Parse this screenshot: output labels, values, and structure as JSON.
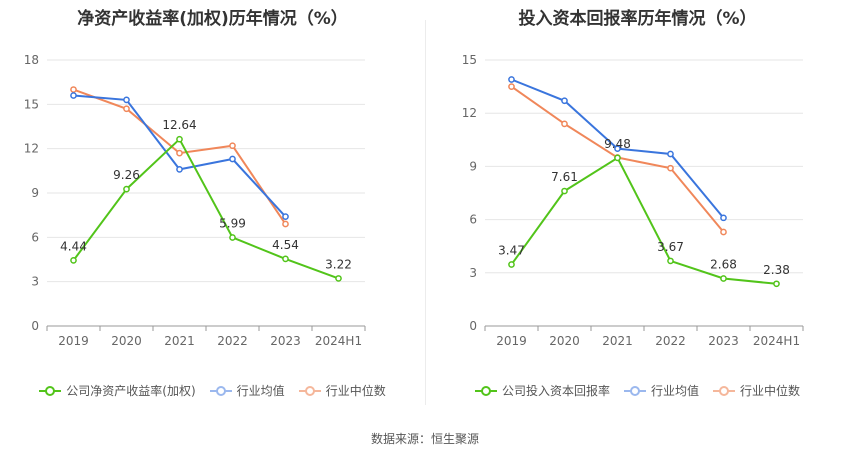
{
  "source": "数据来源：恒生聚源",
  "colors": {
    "company": "#52c41a",
    "avg": "#3a75dd",
    "median": "#f0875a"
  },
  "chart_data": [
    {
      "type": "line",
      "title": "净资产收益率(加权)历年情况（%）",
      "categories": [
        "2019",
        "2020",
        "2021",
        "2022",
        "2023",
        "2024H1"
      ],
      "ylim": [
        0,
        18
      ],
      "yticks": [
        0,
        3,
        6,
        9,
        12,
        15,
        18
      ],
      "grid": true,
      "legend": "bottom",
      "series": [
        {
          "name": "公司净资产收益率(加权)",
          "key": "company",
          "values": [
            4.44,
            9.26,
            12.64,
            5.99,
            4.54,
            3.22
          ],
          "labels": [
            "4.44",
            "9.26",
            "12.64",
            "5.99",
            "4.54",
            "3.22"
          ]
        },
        {
          "name": "行业均值",
          "key": "avg",
          "values": [
            15.6,
            15.3,
            10.6,
            11.3,
            7.4,
            null
          ]
        },
        {
          "name": "行业中位数",
          "key": "median",
          "values": [
            16.0,
            14.7,
            11.7,
            12.2,
            6.9,
            null
          ]
        }
      ]
    },
    {
      "type": "line",
      "title": "投入资本回报率历年情况（%）",
      "categories": [
        "2019",
        "2020",
        "2021",
        "2022",
        "2023",
        "2024H1"
      ],
      "ylim": [
        0,
        15
      ],
      "yticks": [
        0,
        3,
        6,
        9,
        12,
        15
      ],
      "grid": true,
      "legend": "bottom",
      "series": [
        {
          "name": "公司投入资本回报率",
          "key": "company",
          "values": [
            3.47,
            7.61,
            9.48,
            3.67,
            2.68,
            2.38
          ],
          "labels": [
            "3.47",
            "7.61",
            "9.48",
            "3.67",
            "2.68",
            "2.38"
          ]
        },
        {
          "name": "行业均值",
          "key": "avg",
          "values": [
            13.9,
            12.7,
            10.0,
            9.7,
            6.1,
            null
          ]
        },
        {
          "name": "行业中位数",
          "key": "median",
          "values": [
            13.5,
            11.4,
            9.5,
            8.9,
            5.3,
            null
          ]
        }
      ]
    }
  ]
}
